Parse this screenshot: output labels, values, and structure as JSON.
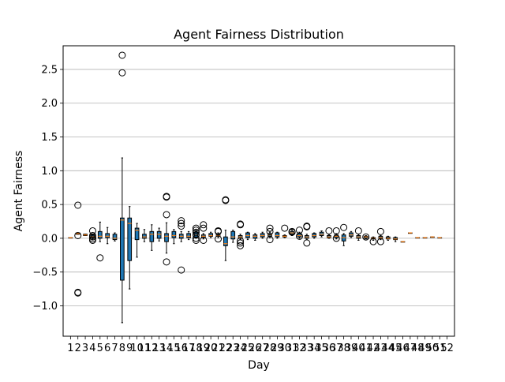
{
  "chart_data": {
    "type": "box",
    "title": "Agent Fairness Distribution",
    "xlabel": "Day",
    "ylabel": "Agent Fairness",
    "ylim": [
      -1.45,
      2.85
    ],
    "yticks": [
      -1.0,
      -0.5,
      0.0,
      0.5,
      1.0,
      1.5,
      2.0,
      2.5
    ],
    "ytick_labels": [
      "−1.0",
      "−0.5",
      "0.0",
      "0.5",
      "1.0",
      "1.5",
      "2.0",
      "2.5"
    ],
    "grid": "horizontal",
    "colors": {
      "box_fill": "#1f77b4",
      "median": "#ff7f0e",
      "grid": "#b0b0b0",
      "outlier_edge": "#000000"
    },
    "days": [
      {
        "day": "1",
        "q1": 0.01,
        "med": 0.01,
        "q3": 0.01,
        "wlo": 0.01,
        "whi": 0.01,
        "fliers": []
      },
      {
        "day": "2",
        "q1": 0.06,
        "med": 0.07,
        "q3": 0.08,
        "wlo": 0.06,
        "whi": 0.08,
        "fliers": [
          0.49,
          0.04,
          -0.81,
          -0.8
        ]
      },
      {
        "day": "3",
        "q1": 0.04,
        "med": 0.05,
        "q3": 0.06,
        "wlo": 0.04,
        "whi": 0.06,
        "fliers": []
      },
      {
        "day": "4",
        "q1": 0.0,
        "med": 0.02,
        "q3": 0.05,
        "wlo": -0.02,
        "whi": 0.06,
        "fliers": [
          0.11,
          0.04,
          0.02,
          -0.01,
          -0.03
        ]
      },
      {
        "day": "5",
        "q1": 0.0,
        "med": 0.03,
        "q3": 0.1,
        "wlo": -0.05,
        "whi": 0.24,
        "fliers": [
          -0.29
        ]
      },
      {
        "day": "6",
        "q1": 0.01,
        "med": 0.03,
        "q3": 0.07,
        "wlo": -0.08,
        "whi": 0.16,
        "fliers": []
      },
      {
        "day": "7",
        "q1": -0.02,
        "med": 0.0,
        "q3": 0.06,
        "wlo": -0.04,
        "whi": 0.08,
        "fliers": []
      },
      {
        "day": "8",
        "q1": -0.62,
        "med": 0.27,
        "q3": 0.3,
        "wlo": -1.25,
        "whi": 1.19,
        "fliers": [
          2.71,
          2.45
        ]
      },
      {
        "day": "9",
        "q1": -0.33,
        "med": 0.22,
        "q3": 0.3,
        "wlo": -0.75,
        "whi": 0.47,
        "fliers": []
      },
      {
        "day": "10",
        "q1": -0.02,
        "med": 0.12,
        "q3": 0.15,
        "wlo": -0.28,
        "whi": 0.22,
        "fliers": []
      },
      {
        "day": "11",
        "q1": 0.0,
        "med": 0.02,
        "q3": 0.06,
        "wlo": -0.05,
        "whi": 0.13,
        "fliers": []
      },
      {
        "day": "12",
        "q1": -0.05,
        "med": 0.06,
        "q3": 0.1,
        "wlo": -0.18,
        "whi": 0.2,
        "fliers": []
      },
      {
        "day": "13",
        "q1": 0.0,
        "med": 0.06,
        "q3": 0.1,
        "wlo": -0.04,
        "whi": 0.15,
        "fliers": []
      },
      {
        "day": "14",
        "q1": -0.05,
        "med": 0.03,
        "q3": 0.07,
        "wlo": -0.22,
        "whi": 0.23,
        "fliers": [
          0.62,
          0.61,
          0.35,
          -0.35
        ]
      },
      {
        "day": "15",
        "q1": 0.01,
        "med": 0.04,
        "q3": 0.1,
        "wlo": -0.08,
        "whi": 0.13,
        "fliers": []
      },
      {
        "day": "16",
        "q1": 0.0,
        "med": 0.03,
        "q3": 0.06,
        "wlo": -0.05,
        "whi": 0.1,
        "fliers": [
          0.26,
          0.22,
          0.18,
          -0.47
        ]
      },
      {
        "day": "17",
        "q1": 0.01,
        "med": 0.03,
        "q3": 0.07,
        "wlo": -0.02,
        "whi": 0.1,
        "fliers": []
      },
      {
        "day": "18",
        "q1": 0.02,
        "med": 0.05,
        "q3": 0.09,
        "wlo": 0.0,
        "whi": 0.12,
        "fliers": [
          0.15,
          0.12,
          0.09,
          0.05,
          0.0,
          -0.03
        ]
      },
      {
        "day": "19",
        "q1": 0.01,
        "med": 0.03,
        "q3": 0.05,
        "wlo": -0.01,
        "whi": 0.07,
        "fliers": [
          0.2,
          0.15,
          -0.03
        ]
      },
      {
        "day": "20",
        "q1": 0.03,
        "med": 0.04,
        "q3": 0.07,
        "wlo": 0.01,
        "whi": 0.09,
        "fliers": []
      },
      {
        "day": "21",
        "q1": 0.03,
        "med": 0.04,
        "q3": 0.06,
        "wlo": 0.01,
        "whi": 0.08,
        "fliers": [
          0.11,
          0.1,
          -0.01
        ]
      },
      {
        "day": "22",
        "q1": -0.11,
        "med": -0.08,
        "q3": 0.02,
        "wlo": -0.33,
        "whi": 0.12,
        "fliers": [
          0.57,
          0.56
        ]
      },
      {
        "day": "23",
        "q1": -0.01,
        "med": 0.02,
        "q3": 0.1,
        "wlo": -0.06,
        "whi": 0.12,
        "fliers": []
      },
      {
        "day": "24",
        "q1": 0.0,
        "med": 0.02,
        "q3": 0.04,
        "wlo": -0.02,
        "whi": 0.06,
        "fliers": [
          0.21,
          0.2,
          -0.04,
          -0.07,
          -0.11
        ]
      },
      {
        "day": "25",
        "q1": 0.01,
        "med": 0.04,
        "q3": 0.08,
        "wlo": -0.02,
        "whi": 0.09,
        "fliers": []
      },
      {
        "day": "26",
        "q1": 0.0,
        "med": 0.03,
        "q3": 0.05,
        "wlo": -0.03,
        "whi": 0.07,
        "fliers": []
      },
      {
        "day": "27",
        "q1": 0.02,
        "med": 0.04,
        "q3": 0.07,
        "wlo": 0.0,
        "whi": 0.09,
        "fliers": []
      },
      {
        "day": "28",
        "q1": 0.03,
        "med": 0.05,
        "q3": 0.07,
        "wlo": 0.01,
        "whi": 0.09,
        "fliers": [
          0.15,
          0.1,
          -0.02
        ]
      },
      {
        "day": "29",
        "q1": 0.02,
        "med": 0.04,
        "q3": 0.08,
        "wlo": 0.0,
        "whi": 0.09,
        "fliers": []
      },
      {
        "day": "30",
        "q1": 0.02,
        "med": 0.03,
        "q3": 0.04,
        "wlo": 0.01,
        "whi": 0.05,
        "fliers": [
          0.15
        ]
      },
      {
        "day": "31",
        "q1": 0.06,
        "med": 0.08,
        "q3": 0.1,
        "wlo": 0.04,
        "whi": 0.12,
        "fliers": [
          0.1,
          0.09
        ]
      },
      {
        "day": "32",
        "q1": 0.02,
        "med": 0.04,
        "q3": 0.07,
        "wlo": 0.0,
        "whi": 0.09,
        "fliers": [
          0.12,
          0.03
        ]
      },
      {
        "day": "33",
        "q1": 0.0,
        "med": 0.02,
        "q3": 0.04,
        "wlo": -0.02,
        "whi": 0.06,
        "fliers": [
          0.18,
          0.17,
          -0.07
        ]
      },
      {
        "day": "34",
        "q1": 0.02,
        "med": 0.04,
        "q3": 0.07,
        "wlo": 0.0,
        "whi": 0.08,
        "fliers": []
      },
      {
        "day": "35",
        "q1": 0.04,
        "med": 0.06,
        "q3": 0.09,
        "wlo": 0.02,
        "whi": 0.11,
        "fliers": []
      },
      {
        "day": "36",
        "q1": 0.01,
        "med": 0.02,
        "q3": 0.04,
        "wlo": 0.0,
        "whi": 0.05,
        "fliers": [
          0.11
        ]
      },
      {
        "day": "37",
        "q1": 0.01,
        "med": 0.03,
        "q3": 0.05,
        "wlo": -0.01,
        "whi": 0.07,
        "fliers": [
          0.11,
          0.0
        ]
      },
      {
        "day": "38",
        "q1": -0.04,
        "med": 0.01,
        "q3": 0.05,
        "wlo": -0.11,
        "whi": 0.07,
        "fliers": [
          0.16
        ]
      },
      {
        "day": "39",
        "q1": 0.03,
        "med": 0.05,
        "q3": 0.08,
        "wlo": 0.01,
        "whi": 0.1,
        "fliers": []
      },
      {
        "day": "40",
        "q1": 0.0,
        "med": 0.02,
        "q3": 0.04,
        "wlo": -0.03,
        "whi": 0.06,
        "fliers": [
          0.11
        ]
      },
      {
        "day": "41",
        "q1": 0.0,
        "med": 0.02,
        "q3": 0.03,
        "wlo": -0.01,
        "whi": 0.04,
        "fliers": [
          0.02
        ]
      },
      {
        "day": "42",
        "q1": -0.01,
        "med": 0.0,
        "q3": 0.01,
        "wlo": -0.03,
        "whi": 0.02,
        "fliers": [
          -0.05
        ]
      },
      {
        "day": "43",
        "q1": 0.0,
        "med": 0.01,
        "q3": 0.03,
        "wlo": -0.02,
        "whi": 0.04,
        "fliers": [
          0.1,
          -0.05
        ]
      },
      {
        "day": "44",
        "q1": -0.01,
        "med": 0.0,
        "q3": 0.02,
        "wlo": -0.03,
        "whi": 0.03,
        "fliers": []
      },
      {
        "day": "45",
        "q1": -0.02,
        "med": -0.01,
        "q3": 0.01,
        "wlo": -0.05,
        "whi": 0.02,
        "fliers": []
      },
      {
        "day": "46",
        "q1": -0.05,
        "med": -0.05,
        "q3": -0.05,
        "wlo": -0.05,
        "whi": -0.05,
        "fliers": []
      },
      {
        "day": "47",
        "q1": 0.08,
        "med": 0.08,
        "q3": 0.08,
        "wlo": 0.08,
        "whi": 0.08,
        "fliers": []
      },
      {
        "day": "48",
        "q1": 0.01,
        "med": 0.01,
        "q3": 0.01,
        "wlo": 0.01,
        "whi": 0.01,
        "fliers": []
      },
      {
        "day": "49",
        "q1": 0.01,
        "med": 0.01,
        "q3": 0.01,
        "wlo": 0.01,
        "whi": 0.01,
        "fliers": []
      },
      {
        "day": "50",
        "q1": 0.02,
        "med": 0.02,
        "q3": 0.02,
        "wlo": 0.02,
        "whi": 0.02,
        "fliers": []
      },
      {
        "day": "51",
        "q1": 0.01,
        "med": 0.01,
        "q3": 0.01,
        "wlo": 0.01,
        "whi": 0.01,
        "fliers": []
      },
      {
        "day": "52",
        "q1": null,
        "med": null,
        "q3": null,
        "wlo": null,
        "whi": null,
        "fliers": []
      }
    ]
  }
}
